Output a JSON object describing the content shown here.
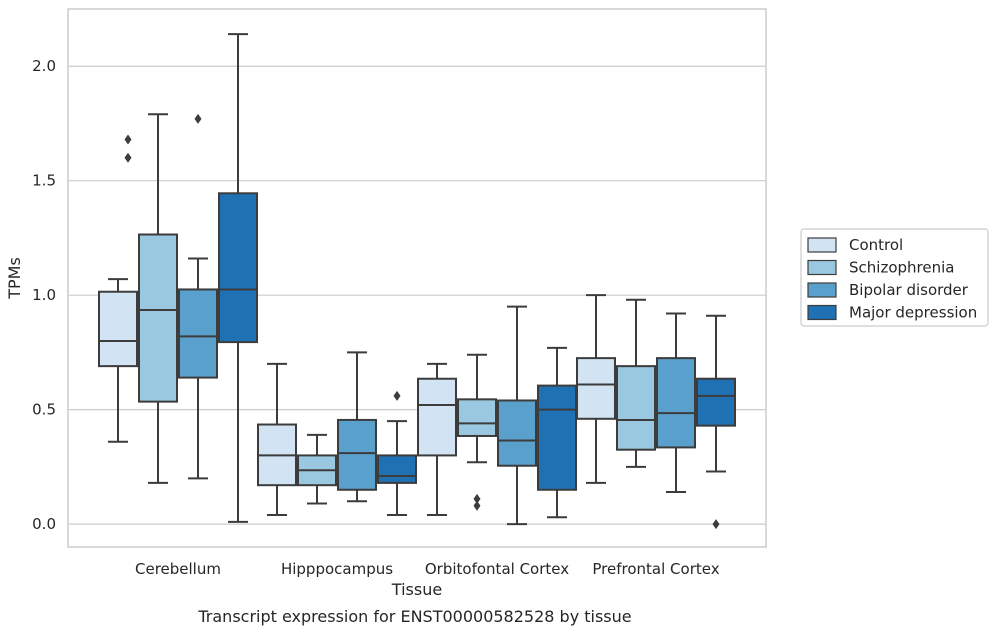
{
  "chart_data": {
    "type": "box",
    "title": "Transcript expression for ENST00000582528 by tissue",
    "xlabel": "Tissue",
    "ylabel": "TPMs",
    "ylim": [
      -0.1,
      2.25
    ],
    "yticks": [
      "0.0",
      "0.5",
      "1.0",
      "1.5",
      "2.0"
    ],
    "ytick_values": [
      0.0,
      0.5,
      1.0,
      1.5,
      2.0
    ],
    "grid": true,
    "legend_position": "right",
    "categories": [
      "Cerebellum",
      "Hipppocampus",
      "Orbitofontal Cortex",
      "Prefrontal Cortex"
    ],
    "series": [
      {
        "name": "Control",
        "color": "#d2e3f3",
        "boxes": [
          {
            "whislo": 0.36,
            "q1": 0.69,
            "med": 0.8,
            "q3": 1.015,
            "whishi": 1.07,
            "fliers": []
          },
          {
            "whislo": 0.04,
            "q1": 0.17,
            "med": 0.3,
            "q3": 0.435,
            "whishi": 0.7,
            "fliers": []
          },
          {
            "whislo": 0.04,
            "q1": 0.3,
            "med": 0.52,
            "q3": 0.635,
            "whishi": 0.7,
            "fliers": []
          },
          {
            "whislo": 0.18,
            "q1": 0.46,
            "med": 0.61,
            "q3": 0.725,
            "whishi": 1.0,
            "fliers": []
          }
        ]
      },
      {
        "name": "Schizophrenia",
        "color": "#9ac8e0",
        "boxes": [
          {
            "whislo": 0.18,
            "q1": 0.535,
            "med": 0.935,
            "q3": 1.265,
            "whishi": 1.79,
            "fliers": []
          },
          {
            "whislo": 0.09,
            "q1": 0.17,
            "med": 0.235,
            "q3": 0.3,
            "whishi": 0.39,
            "fliers": []
          },
          {
            "whislo": 0.27,
            "q1": 0.385,
            "med": 0.44,
            "q3": 0.545,
            "whishi": 0.74,
            "fliers": [
              0.08,
              0.11
            ]
          },
          {
            "whislo": 0.25,
            "q1": 0.325,
            "med": 0.455,
            "q3": 0.69,
            "whishi": 0.98,
            "fliers": []
          }
        ]
      },
      {
        "name": "Bipolar disorder",
        "color": "#5aa0cd",
        "boxes": [
          {
            "whislo": 0.2,
            "q1": 0.64,
            "med": 0.82,
            "q3": 1.025,
            "whishi": 1.16,
            "fliers": [
              1.77
            ]
          },
          {
            "whislo": 0.1,
            "q1": 0.15,
            "med": 0.31,
            "q3": 0.455,
            "whishi": 0.75,
            "fliers": []
          },
          {
            "whislo": 0.0,
            "q1": 0.255,
            "med": 0.365,
            "q3": 0.54,
            "whishi": 0.95,
            "fliers": []
          },
          {
            "whislo": 0.14,
            "q1": 0.335,
            "med": 0.485,
            "q3": 0.725,
            "whishi": 0.92,
            "fliers": []
          }
        ]
      },
      {
        "name": "Major depression",
        "color": "#2070b4",
        "boxes": [
          {
            "whislo": 0.01,
            "q1": 0.795,
            "med": 1.025,
            "q3": 1.445,
            "whishi": 2.14,
            "fliers": []
          },
          {
            "whislo": 0.04,
            "q1": 0.18,
            "med": 0.21,
            "q3": 0.3,
            "whishi": 0.45,
            "fliers": [
              0.56
            ]
          },
          {
            "whislo": 0.03,
            "q1": 0.15,
            "med": 0.5,
            "q3": 0.605,
            "whishi": 0.77,
            "fliers": []
          },
          {
            "whislo": 0.23,
            "q1": 0.43,
            "med": 0.56,
            "q3": 0.635,
            "whishi": 0.91,
            "fliers": [
              0.0
            ]
          }
        ]
      }
    ],
    "extra_fliers": [
      {
        "category": 0,
        "series": 0,
        "values": [
          1.6,
          1.68
        ]
      }
    ]
  }
}
